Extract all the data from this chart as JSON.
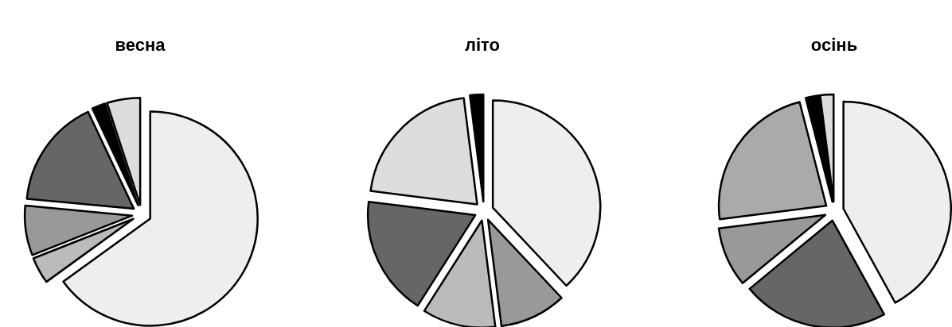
{
  "chart_data": [
    {
      "type": "pie",
      "title": "весна",
      "categories": [
        null,
        null,
        null,
        null,
        null,
        null
      ],
      "values": [
        65,
        4,
        7.5,
        16.5,
        2,
        5
      ],
      "colors": [
        "#eeeeee",
        "#bbbbbb",
        "#999999",
        "#666666",
        "#000000",
        "#dddddd"
      ]
    },
    {
      "type": "pie",
      "title": "літо",
      "categories": [
        null,
        null,
        null,
        null,
        null,
        null
      ],
      "values": [
        38,
        10,
        11,
        18,
        21,
        2
      ],
      "colors": [
        "#eeeeee",
        "#999999",
        "#bbbbbb",
        "#666666",
        "#dddddd",
        "#000000"
      ]
    },
    {
      "type": "pie",
      "title": "осінь",
      "categories": [
        null,
        null,
        null,
        null,
        null,
        null
      ],
      "values": [
        42,
        22,
        9,
        23,
        2,
        2
      ],
      "colors": [
        "#eeeeee",
        "#666666",
        "#999999",
        "#aaaaaa",
        "#000000",
        "#dddddd"
      ]
    }
  ]
}
